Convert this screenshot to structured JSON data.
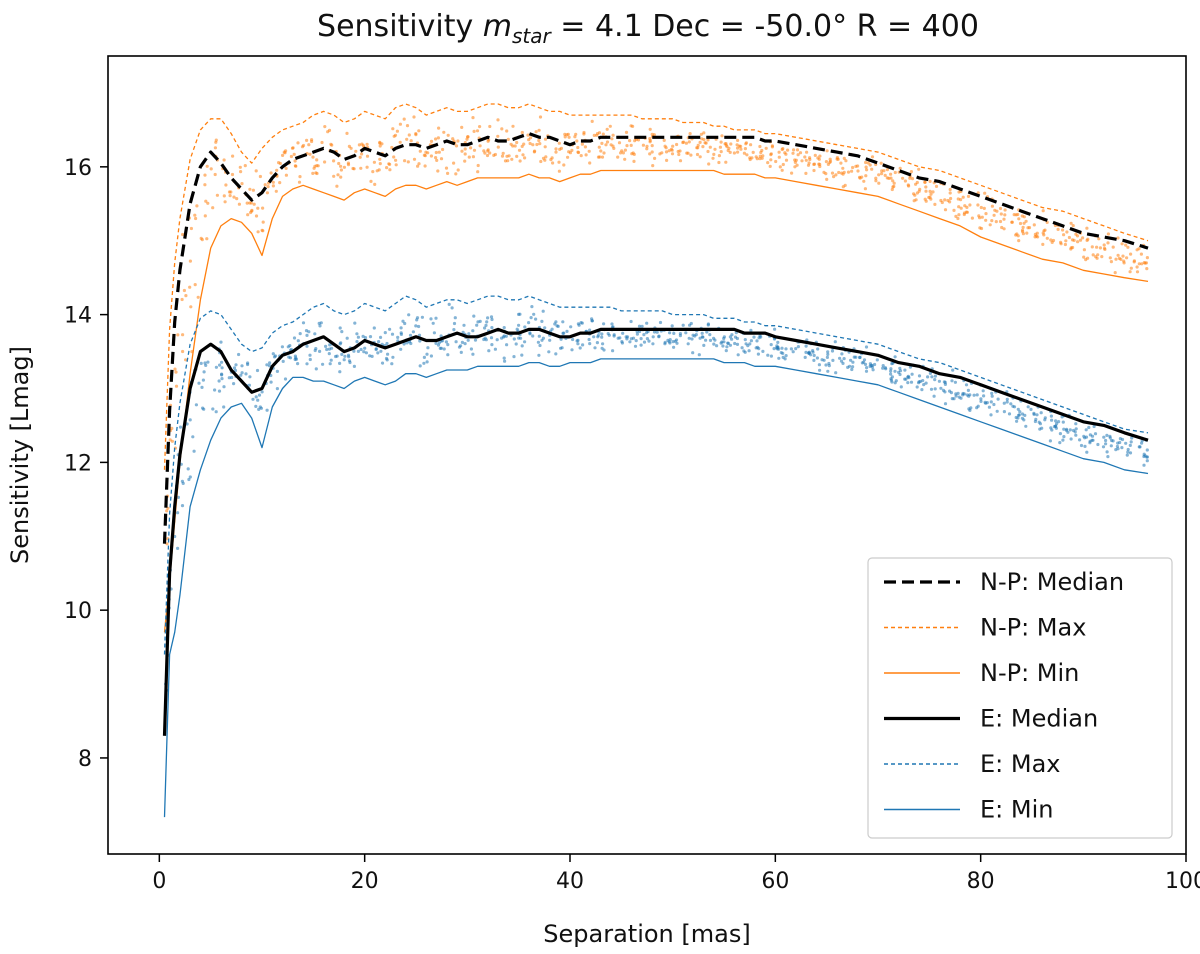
{
  "chart_data": {
    "type": "line",
    "title_prefix": "Sensitivity ",
    "title_symbol": "m",
    "title_subscript": "star",
    "title_suffix": " = 4.1 Dec = -50.0° R = 400",
    "xlabel": "Separation [mas]",
    "ylabel": "Sensitivity [Lmag]",
    "xlim": [
      -5,
      100
    ],
    "ylim": [
      6.7,
      17.5
    ],
    "xticks": [
      0,
      20,
      40,
      60,
      80,
      100
    ],
    "yticks": [
      8,
      10,
      12,
      14,
      16
    ],
    "legend_position": "lower-right",
    "x": [
      0.5,
      1,
      1.5,
      2,
      3,
      4,
      5,
      6,
      7,
      8,
      9,
      10,
      11,
      12,
      13,
      14,
      15,
      16,
      17,
      18,
      19,
      20,
      21,
      22,
      23,
      24,
      25,
      26,
      27,
      28,
      29,
      30,
      31,
      32,
      33,
      34,
      35,
      36,
      37,
      38,
      39,
      40,
      41,
      42,
      43,
      44,
      45,
      46,
      47,
      48,
      49,
      50,
      51,
      52,
      53,
      54,
      55,
      56,
      57,
      58,
      59,
      60,
      62,
      64,
      66,
      68,
      70,
      72,
      74,
      76,
      78,
      80,
      82,
      84,
      86,
      88,
      90,
      92,
      94,
      96.3
    ],
    "series": [
      {
        "name": "N-P: Median",
        "color": "#000000",
        "style": "dashed",
        "values": [
          10.9,
          12.7,
          13.9,
          14.6,
          15.5,
          16.0,
          16.2,
          16.05,
          15.85,
          15.7,
          15.55,
          15.65,
          15.85,
          16.0,
          16.1,
          16.15,
          16.2,
          16.25,
          16.2,
          16.1,
          16.15,
          16.25,
          16.2,
          16.15,
          16.25,
          16.3,
          16.3,
          16.25,
          16.3,
          16.35,
          16.3,
          16.3,
          16.35,
          16.4,
          16.35,
          16.35,
          16.4,
          16.45,
          16.4,
          16.4,
          16.35,
          16.3,
          16.35,
          16.35,
          16.4,
          16.4,
          16.4,
          16.4,
          16.4,
          16.4,
          16.4,
          16.4,
          16.4,
          16.4,
          16.4,
          16.4,
          16.4,
          16.4,
          16.4,
          16.4,
          16.35,
          16.35,
          16.3,
          16.25,
          16.2,
          16.15,
          16.05,
          15.95,
          15.85,
          15.8,
          15.7,
          15.6,
          15.5,
          15.4,
          15.3,
          15.2,
          15.1,
          15.05,
          15.0,
          14.9
        ]
      },
      {
        "name": "N-P: Max",
        "color": "#ff7f0e",
        "style": "dotted",
        "values": [
          11.9,
          13.8,
          14.7,
          15.3,
          16.1,
          16.5,
          16.65,
          16.65,
          16.45,
          16.2,
          16.05,
          16.25,
          16.4,
          16.5,
          16.55,
          16.6,
          16.7,
          16.75,
          16.7,
          16.6,
          16.65,
          16.75,
          16.7,
          16.65,
          16.8,
          16.85,
          16.8,
          16.7,
          16.75,
          16.8,
          16.75,
          16.75,
          16.8,
          16.85,
          16.85,
          16.8,
          16.8,
          16.85,
          16.8,
          16.75,
          16.75,
          16.7,
          16.7,
          16.7,
          16.7,
          16.7,
          16.7,
          16.7,
          16.65,
          16.65,
          16.65,
          16.65,
          16.6,
          16.6,
          16.6,
          16.55,
          16.55,
          16.5,
          16.5,
          16.5,
          16.45,
          16.45,
          16.4,
          16.35,
          16.3,
          16.25,
          16.2,
          16.1,
          16.0,
          15.95,
          15.85,
          15.75,
          15.65,
          15.55,
          15.45,
          15.4,
          15.3,
          15.2,
          15.1,
          15.0
        ]
      },
      {
        "name": "N-P: Min",
        "color": "#ff7f0e",
        "style": "solid",
        "values": [
          9.7,
          10.4,
          11.2,
          12.0,
          13.2,
          14.2,
          14.9,
          15.2,
          15.3,
          15.25,
          15.1,
          14.8,
          15.3,
          15.6,
          15.7,
          15.75,
          15.7,
          15.65,
          15.6,
          15.55,
          15.65,
          15.7,
          15.65,
          15.6,
          15.7,
          15.75,
          15.75,
          15.7,
          15.75,
          15.8,
          15.75,
          15.8,
          15.85,
          15.85,
          15.85,
          15.85,
          15.85,
          15.9,
          15.85,
          15.85,
          15.8,
          15.85,
          15.9,
          15.9,
          15.95,
          15.95,
          15.95,
          15.95,
          15.95,
          15.95,
          15.95,
          15.95,
          15.95,
          15.95,
          15.95,
          15.95,
          15.9,
          15.9,
          15.9,
          15.9,
          15.85,
          15.85,
          15.8,
          15.75,
          15.7,
          15.65,
          15.6,
          15.5,
          15.4,
          15.3,
          15.2,
          15.05,
          14.95,
          14.85,
          14.75,
          14.7,
          14.6,
          14.55,
          14.5,
          14.45
        ]
      },
      {
        "name": "E: Median",
        "color": "#000000",
        "style": "solid",
        "values": [
          8.3,
          10.5,
          11.4,
          12.1,
          13.0,
          13.5,
          13.6,
          13.5,
          13.25,
          13.1,
          12.95,
          13.0,
          13.3,
          13.45,
          13.5,
          13.6,
          13.65,
          13.7,
          13.6,
          13.5,
          13.55,
          13.65,
          13.6,
          13.55,
          13.6,
          13.65,
          13.7,
          13.65,
          13.65,
          13.7,
          13.75,
          13.7,
          13.7,
          13.75,
          13.8,
          13.75,
          13.75,
          13.8,
          13.8,
          13.75,
          13.7,
          13.7,
          13.75,
          13.75,
          13.8,
          13.8,
          13.8,
          13.8,
          13.8,
          13.8,
          13.8,
          13.8,
          13.8,
          13.8,
          13.8,
          13.8,
          13.8,
          13.8,
          13.75,
          13.75,
          13.75,
          13.7,
          13.65,
          13.6,
          13.55,
          13.5,
          13.45,
          13.35,
          13.3,
          13.2,
          13.15,
          13.05,
          12.95,
          12.85,
          12.75,
          12.65,
          12.55,
          12.5,
          12.4,
          12.3
        ]
      },
      {
        "name": "E: Max",
        "color": "#1f77b4",
        "style": "dotted",
        "values": [
          9.4,
          11.3,
          12.2,
          12.8,
          13.6,
          13.95,
          14.05,
          14.0,
          13.8,
          13.6,
          13.5,
          13.55,
          13.75,
          13.85,
          13.9,
          14.0,
          14.1,
          14.15,
          14.05,
          14.0,
          14.05,
          14.15,
          14.1,
          14.05,
          14.15,
          14.25,
          14.2,
          14.1,
          14.15,
          14.2,
          14.2,
          14.15,
          14.2,
          14.25,
          14.25,
          14.2,
          14.2,
          14.25,
          14.2,
          14.15,
          14.1,
          14.1,
          14.1,
          14.1,
          14.1,
          14.1,
          14.05,
          14.05,
          14.05,
          14.05,
          14.05,
          14.0,
          14.0,
          14.0,
          14.0,
          13.95,
          13.95,
          13.95,
          13.9,
          13.9,
          13.85,
          13.85,
          13.8,
          13.75,
          13.7,
          13.65,
          13.6,
          13.5,
          13.4,
          13.35,
          13.25,
          13.15,
          13.05,
          12.95,
          12.85,
          12.75,
          12.65,
          12.55,
          12.45,
          12.4
        ]
      },
      {
        "name": "E: Min",
        "color": "#1f77b4",
        "style": "solid",
        "values": [
          7.2,
          9.4,
          9.7,
          10.2,
          11.4,
          11.9,
          12.3,
          12.6,
          12.75,
          12.8,
          12.6,
          12.2,
          12.75,
          13.0,
          13.15,
          13.15,
          13.1,
          13.1,
          13.05,
          13.0,
          13.1,
          13.15,
          13.1,
          13.05,
          13.1,
          13.2,
          13.2,
          13.15,
          13.2,
          13.25,
          13.25,
          13.25,
          13.3,
          13.3,
          13.3,
          13.3,
          13.3,
          13.35,
          13.35,
          13.3,
          13.3,
          13.35,
          13.35,
          13.35,
          13.4,
          13.4,
          13.4,
          13.4,
          13.4,
          13.4,
          13.4,
          13.4,
          13.4,
          13.4,
          13.4,
          13.4,
          13.35,
          13.35,
          13.35,
          13.3,
          13.3,
          13.3,
          13.25,
          13.2,
          13.15,
          13.1,
          13.05,
          12.95,
          12.85,
          12.75,
          12.65,
          12.55,
          12.45,
          12.35,
          12.25,
          12.15,
          12.05,
          12.0,
          11.9,
          11.85
        ]
      }
    ]
  }
}
